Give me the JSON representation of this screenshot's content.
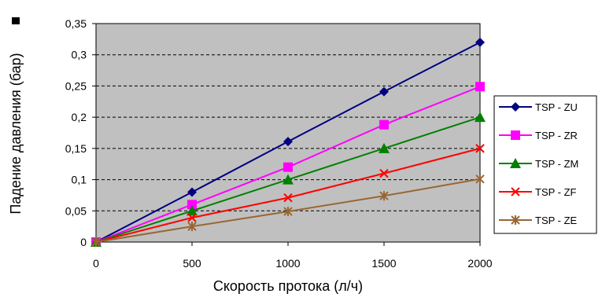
{
  "chart_data": {
    "type": "line",
    "xlabel": "Скорость протока (л/ч)",
    "ylabel": "Падение давления (бар)",
    "x": [
      0,
      500,
      1000,
      1500,
      2000
    ],
    "xticks": [
      "0",
      "500",
      "1000",
      "1500",
      "2000"
    ],
    "xlim": [
      0,
      2000
    ],
    "yticks": [
      "0",
      "0,05",
      "0,1",
      "0,15",
      "0,2",
      "0,25",
      "0,3",
      "0,35"
    ],
    "ylim": [
      0,
      0.35
    ],
    "grid": "horizontal dashed",
    "legend_position": "right",
    "plot_background": "#c0c0c0",
    "series": [
      {
        "name": "TSP - ZU",
        "marker": "diamond",
        "color": "#000080",
        "values": [
          0,
          0.08,
          0.161,
          0.241,
          0.32
        ]
      },
      {
        "name": "TSP - ZR",
        "marker": "square",
        "color": "#ff00ff",
        "values": [
          0,
          0.06,
          0.12,
          0.188,
          0.249
        ]
      },
      {
        "name": "TSP - ZM",
        "marker": "triangle",
        "color": "#008000",
        "values": [
          0,
          0.05,
          0.1,
          0.15,
          0.2
        ]
      },
      {
        "name": "TSP - ZF",
        "marker": "x",
        "color": "#ff0000",
        "values": [
          0,
          0.039,
          0.071,
          0.11,
          0.15
        ]
      },
      {
        "name": "TSP - ZE",
        "marker": "star",
        "color": "#996633",
        "values": [
          0,
          0.025,
          0.049,
          0.074,
          0.101
        ]
      }
    ]
  }
}
